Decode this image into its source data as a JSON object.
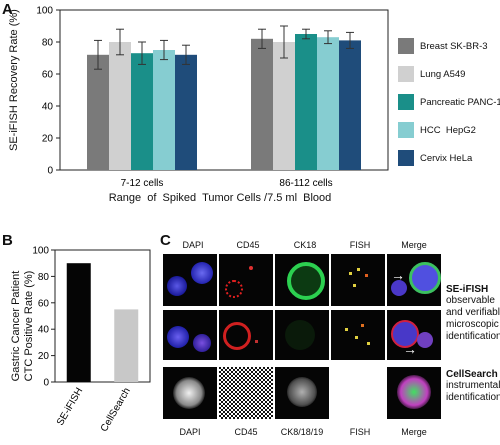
{
  "panelA": {
    "letter": "A",
    "ylabel": "SE-iFISH Recovery Rate (%)",
    "xlabel": "Range  of  Spiked  Tumor Cells /7.5 ml  Blood",
    "chart_data": {
      "type": "bar",
      "categories": [
        "7-12 cells",
        "86-112 cells"
      ],
      "ylim": [
        0,
        100
      ],
      "yticks": [
        0,
        20,
        40,
        60,
        80,
        100
      ],
      "legend_position": "right",
      "series": [
        {
          "name": "Breast SK-BR-3",
          "color": "#7a7a7a",
          "values": [
            72,
            82
          ],
          "errors": [
            9,
            6
          ]
        },
        {
          "name": "Lung A549",
          "color": "#d0d0d0",
          "values": [
            80,
            80
          ],
          "errors": [
            8,
            10
          ]
        },
        {
          "name": "Pancreatic PANC-1",
          "color": "#1a8f89",
          "values": [
            73,
            85
          ],
          "errors": [
            7,
            3
          ]
        },
        {
          "name": "HCC  HepG2",
          "color": "#86cdd1",
          "values": [
            75,
            83
          ],
          "errors": [
            6,
            4
          ]
        },
        {
          "name": "Cervix HeLa",
          "color": "#1f4c7a",
          "values": [
            72,
            81
          ],
          "errors": [
            6,
            5
          ]
        }
      ]
    }
  },
  "panelB": {
    "letter": "B",
    "ylabel_line1": "Gastric Cancer Patient",
    "ylabel_line2": "CTC Positive  Rate (%)",
    "chart_data": {
      "type": "bar",
      "categories": [
        "SE-iFISH",
        "CellSearch"
      ],
      "values": [
        90,
        55
      ],
      "colors": [
        "#050505",
        "#c8c8c8"
      ],
      "ylim": [
        0,
        100
      ],
      "yticks": [
        0,
        20,
        40,
        60,
        80,
        100
      ]
    }
  },
  "panelC": {
    "letter": "C",
    "top_headers": [
      "DAPI",
      "CD45",
      "CK18",
      "FISH",
      "Merge"
    ],
    "bottom_headers": [
      "DAPI",
      "CD45",
      "CK8/18/19",
      "FISH",
      "Merge"
    ],
    "seifish_title": "SE-iFISH",
    "seifish_lines": [
      "observable",
      "and verifiable",
      "microscopic",
      "identification"
    ],
    "cellsearch_title": "CellSearch",
    "cellsearch_lines": [
      "instrumental",
      "identification"
    ]
  }
}
